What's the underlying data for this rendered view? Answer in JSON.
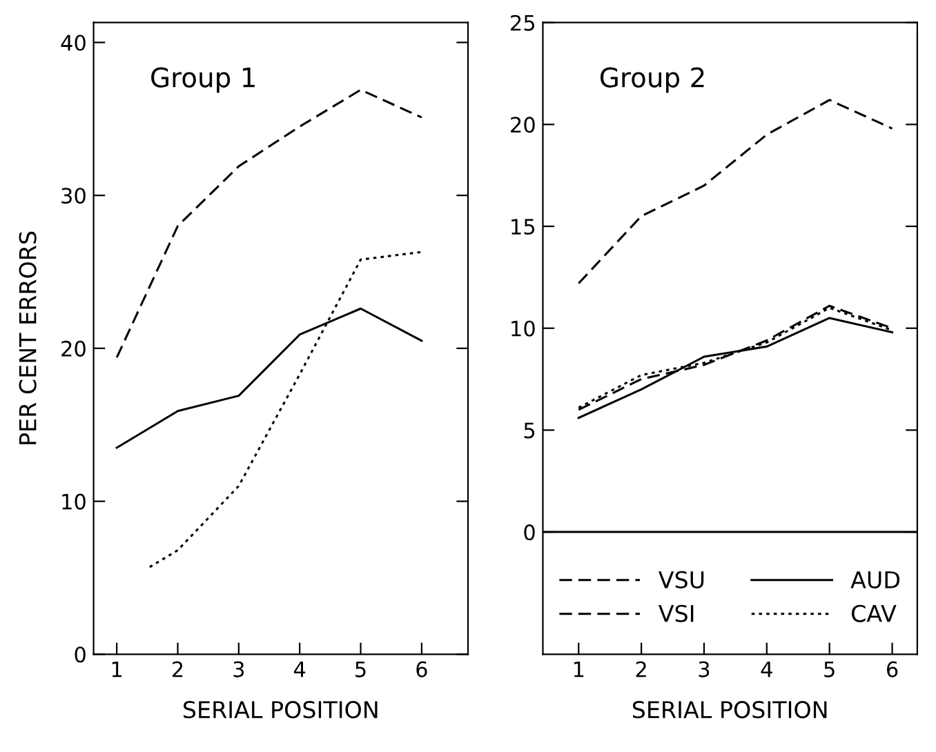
{
  "chart_data": [
    {
      "type": "line",
      "title": "Group 1",
      "xlabel": "SERIAL POSITION",
      "ylabel": "PER CENT ERRORS",
      "xlim": [
        0.62,
        6.76
      ],
      "xticks": [
        1,
        2,
        3,
        4,
        5,
        6
      ],
      "ylim": [
        0,
        41.3
      ],
      "yticks": [
        0,
        10,
        20,
        30,
        40
      ],
      "grid": false,
      "legend": false,
      "series": [
        {
          "color": "#000000",
          "line_style": "dashed",
          "x": [
            1,
            2,
            3,
            4,
            5,
            6
          ],
          "values": [
            19.4,
            28.0,
            31.9,
            34.5,
            36.9,
            35.1
          ]
        },
        {
          "color": "#000000",
          "line_style": "solid",
          "x": [
            1,
            2,
            3,
            4,
            5,
            6
          ],
          "values": [
            13.5,
            15.9,
            16.9,
            20.9,
            22.6,
            20.5
          ]
        },
        {
          "color": "#000000",
          "line_style": "dotted",
          "x": [
            1.54,
            2,
            3,
            4,
            5,
            6
          ],
          "values": [
            5.7,
            6.8,
            11.0,
            18.3,
            25.8,
            26.3
          ]
        }
      ]
    },
    {
      "type": "line",
      "title": "Group 2",
      "xlabel": "SERIAL POSITION",
      "xlim": [
        0.43,
        6.4
      ],
      "xticks": [
        1,
        2,
        3,
        4,
        5,
        6
      ],
      "ylim": [
        -6,
        25
      ],
      "yticks": [
        0,
        5,
        10,
        15,
        20,
        25
      ],
      "grid": false,
      "legend": "bottom",
      "ref_lines": [
        {
          "axis": "y",
          "value": 0,
          "color": "#000000",
          "line_style": "solid"
        }
      ],
      "series": [
        {
          "name": "VSU",
          "color": "#000000",
          "line_style": "dashed",
          "x": [
            1,
            2,
            3,
            4,
            5,
            6
          ],
          "values": [
            12.2,
            15.5,
            17.0,
            19.5,
            21.2,
            19.8
          ]
        },
        {
          "name": "AUD",
          "color": "#000000",
          "line_style": "solid",
          "x": [
            1,
            2,
            3,
            4,
            5,
            6
          ],
          "values": [
            5.6,
            7.0,
            8.6,
            9.1,
            10.5,
            9.8
          ]
        },
        {
          "name": "VSI",
          "color": "#000000",
          "line_style": "dashed",
          "x": [
            1,
            2,
            3,
            4,
            5,
            6
          ],
          "values": [
            6.0,
            7.5,
            8.2,
            9.4,
            11.1,
            10.0
          ]
        },
        {
          "name": "CAV",
          "color": "#000000",
          "line_style": "dotted",
          "x": [
            1,
            2,
            3,
            4,
            5,
            6
          ],
          "values": [
            6.1,
            7.7,
            8.3,
            9.3,
            11.0,
            9.9
          ]
        }
      ]
    }
  ]
}
